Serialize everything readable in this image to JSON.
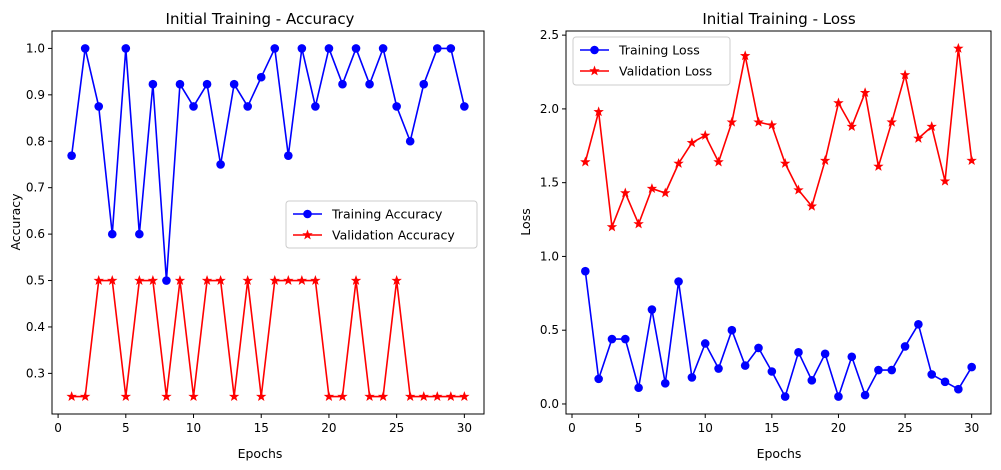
{
  "chart_data": [
    {
      "type": "line",
      "title": "Initial Training - Accuracy",
      "xlabel": "Epochs",
      "ylabel": "Accuracy",
      "xlim": [
        -0.45,
        31.45
      ],
      "ylim": [
        0.2125,
        1.0375
      ],
      "xticks": [
        "0",
        "5",
        "10",
        "15",
        "20",
        "25",
        "30"
      ],
      "yticks": [
        "0.3",
        "0.4",
        "0.5",
        "0.6",
        "0.7",
        "0.8",
        "0.9",
        "1.0"
      ],
      "legend_position": "center-right",
      "grid": false,
      "x": [
        1,
        2,
        3,
        4,
        5,
        6,
        7,
        8,
        9,
        10,
        11,
        12,
        13,
        14,
        15,
        16,
        17,
        18,
        19,
        20,
        21,
        22,
        23,
        24,
        25,
        26,
        27,
        28,
        29,
        30
      ],
      "series": [
        {
          "name": "Training Accuracy",
          "color": "#0000ff",
          "marker": "circle",
          "values": [
            0.769,
            1.0,
            0.875,
            0.6,
            1.0,
            0.6,
            0.923,
            0.5,
            0.923,
            0.875,
            0.923,
            0.75,
            0.923,
            0.875,
            0.938,
            1.0,
            0.769,
            1.0,
            0.875,
            1.0,
            0.923,
            1.0,
            0.923,
            1.0,
            0.875,
            0.8,
            0.923,
            1.0,
            1.0,
            0.875
          ]
        },
        {
          "name": "Validation Accuracy",
          "color": "#ff0000",
          "marker": "star",
          "values": [
            0.25,
            0.25,
            0.5,
            0.5,
            0.25,
            0.5,
            0.5,
            0.25,
            0.5,
            0.25,
            0.5,
            0.5,
            0.25,
            0.5,
            0.25,
            0.5,
            0.5,
            0.5,
            0.5,
            0.25,
            0.25,
            0.5,
            0.25,
            0.25,
            0.5,
            0.25,
            0.25,
            0.25,
            0.25,
            0.25
          ]
        }
      ]
    },
    {
      "type": "line",
      "title": "Initial Training - Loss",
      "xlabel": "Epochs",
      "ylabel": "Loss",
      "xlim": [
        -0.45,
        31.45
      ],
      "ylim": [
        -0.068,
        2.528
      ],
      "xticks": [
        "0",
        "5",
        "10",
        "15",
        "20",
        "25",
        "30"
      ],
      "yticks": [
        "0.0",
        "0.5",
        "1.0",
        "1.5",
        "2.0",
        "2.5"
      ],
      "legend_position": "upper-left",
      "grid": false,
      "x": [
        1,
        2,
        3,
        4,
        5,
        6,
        7,
        8,
        9,
        10,
        11,
        12,
        13,
        14,
        15,
        16,
        17,
        18,
        19,
        20,
        21,
        22,
        23,
        24,
        25,
        26,
        27,
        28,
        29,
        30
      ],
      "series": [
        {
          "name": "Training Loss",
          "color": "#0000ff",
          "marker": "circle",
          "values": [
            0.9,
            0.17,
            0.44,
            0.44,
            0.11,
            0.64,
            0.14,
            0.83,
            0.18,
            0.41,
            0.24,
            0.5,
            0.26,
            0.38,
            0.22,
            0.05,
            0.35,
            0.16,
            0.34,
            0.05,
            0.32,
            0.06,
            0.23,
            0.23,
            0.39,
            0.54,
            0.2,
            0.15,
            0.1,
            0.25
          ]
        },
        {
          "name": "Validation Loss",
          "color": "#ff0000",
          "marker": "star",
          "values": [
            1.64,
            1.98,
            1.2,
            1.43,
            1.22,
            1.46,
            1.43,
            1.63,
            1.77,
            1.82,
            1.64,
            1.91,
            2.36,
            1.91,
            1.89,
            1.63,
            1.45,
            1.34,
            1.65,
            2.04,
            1.88,
            2.11,
            1.61,
            1.91,
            2.23,
            1.8,
            1.88,
            1.51,
            2.41,
            1.65
          ]
        }
      ]
    }
  ]
}
